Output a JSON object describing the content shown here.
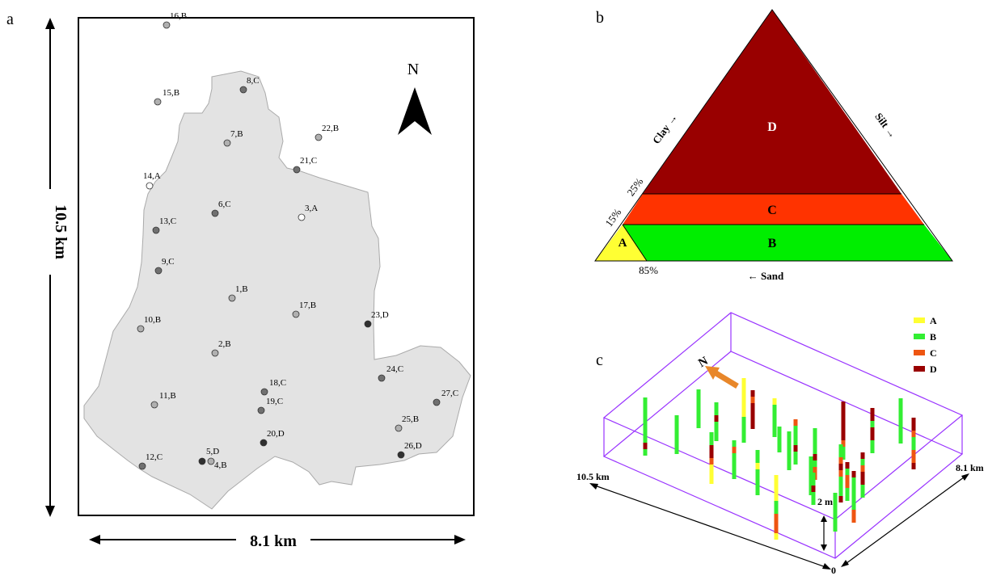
{
  "panel_a": {
    "panel_letter": "a",
    "height_label": "10.5 km",
    "width_label": "8.1 km",
    "north_label": "N",
    "samples": [
      {
        "label": "16,B",
        "cls": "B"
      },
      {
        "label": "8,C",
        "cls": "C"
      },
      {
        "label": "15,B",
        "cls": "B"
      },
      {
        "label": "22,B",
        "cls": "B"
      },
      {
        "label": "7,B",
        "cls": "B"
      },
      {
        "label": "21,C",
        "cls": "C"
      },
      {
        "label": "14,A",
        "cls": "A"
      },
      {
        "label": "6,C",
        "cls": "C"
      },
      {
        "label": "3,A",
        "cls": "A"
      },
      {
        "label": "13,C",
        "cls": "C"
      },
      {
        "label": "9,C",
        "cls": "C"
      },
      {
        "label": "1,B",
        "cls": "B"
      },
      {
        "label": "17,B",
        "cls": "B"
      },
      {
        "label": "23,D",
        "cls": "D"
      },
      {
        "label": "10,B",
        "cls": "B"
      },
      {
        "label": "2,B",
        "cls": "B"
      },
      {
        "label": "24,C",
        "cls": "C"
      },
      {
        "label": "18,C",
        "cls": "C"
      },
      {
        "label": "27,C",
        "cls": "C"
      },
      {
        "label": "11,B",
        "cls": "B"
      },
      {
        "label": "19,C",
        "cls": "C"
      },
      {
        "label": "25,B",
        "cls": "B"
      },
      {
        "label": "20,D",
        "cls": "D"
      },
      {
        "label": "26,D",
        "cls": "D"
      },
      {
        "label": "12,C",
        "cls": "C"
      },
      {
        "label": "5,D",
        "cls": "D"
      },
      {
        "label": "4,B",
        "cls": "B"
      }
    ],
    "class_colors": {
      "A": "#ffffff",
      "B": "#b0b0b0",
      "C": "#707070",
      "D": "#303030"
    }
  },
  "panel_b": {
    "panel_letter": "b",
    "zones": [
      {
        "name": "D",
        "color": "#990000"
      },
      {
        "name": "C",
        "color": "#ff3300"
      },
      {
        "name": "B",
        "color": "#00ee00"
      },
      {
        "name": "A",
        "color": "#ffff33"
      }
    ],
    "clay_label": "Clay →",
    "silt_label": "Silt →",
    "sand_label": "← Sand",
    "pct_25": "25%",
    "pct_15": "15%",
    "pct_85": "85%"
  },
  "panel_c": {
    "panel_letter": "c",
    "north_label": "N",
    "x_label": "10.5 km",
    "y_label": "8.1 km",
    "depth_label": "2 m",
    "origin_label": "0",
    "legend": [
      {
        "name": "A",
        "color": "#ffff33"
      },
      {
        "name": "B",
        "color": "#33ee33"
      },
      {
        "name": "C",
        "color": "#ee5511"
      },
      {
        "name": "D",
        "color": "#990000"
      }
    ],
    "box_color": "#9933ff",
    "arrow_color": "#e8872a"
  }
}
